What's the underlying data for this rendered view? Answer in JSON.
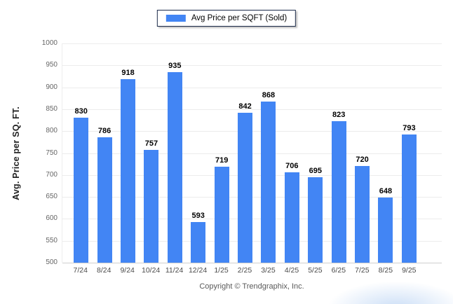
{
  "legend": {
    "label": "Avg Price per SQFT (Sold)",
    "swatch_color": "#4285F4"
  },
  "chart_data": {
    "type": "bar",
    "categories": [
      "7/24",
      "8/24",
      "9/24",
      "10/24",
      "11/24",
      "12/24",
      "1/25",
      "2/25",
      "3/25",
      "4/25",
      "5/25",
      "6/25",
      "7/25",
      "8/25",
      "9/25"
    ],
    "values": [
      830,
      786,
      918,
      757,
      935,
      593,
      719,
      842,
      868,
      706,
      695,
      823,
      720,
      648,
      793
    ],
    "title": "",
    "xlabel": "",
    "ylabel": "Avg. Price per SQ. FT.",
    "ylim": [
      500,
      1000
    ],
    "ytick_step": 50,
    "grid": true,
    "legend_position": "top",
    "bar_color": "#4285F4"
  },
  "footer": {
    "copyright": "Copyright © Trendgraphix, Inc."
  }
}
